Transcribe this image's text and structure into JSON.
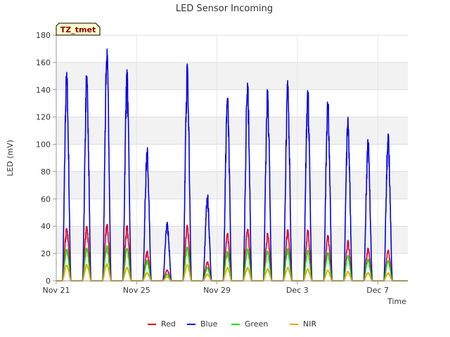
{
  "chart_data": {
    "type": "line",
    "title": "LED Sensor Incoming",
    "xlabel": "Time",
    "ylabel": "LED (mV)",
    "tag": "TZ_tmet",
    "ylim": [
      0,
      180
    ],
    "xlim": [
      0,
      17.5
    ],
    "yticks": [
      0,
      20,
      40,
      60,
      80,
      100,
      120,
      140,
      160,
      180
    ],
    "xticks": [
      {
        "value": 0,
        "label": "Nov 21"
      },
      {
        "value": 4,
        "label": "Nov 25"
      },
      {
        "value": 8,
        "label": "Nov 29"
      },
      {
        "value": 12,
        "label": "Dec 3"
      },
      {
        "value": 16,
        "label": "Dec 7"
      }
    ],
    "day_offset": 0.5,
    "daily_peaks": {
      "Blue": [
        158,
        151,
        172,
        155,
        98,
        43,
        160,
        63,
        139,
        148,
        141,
        148,
        142,
        135,
        121,
        104,
        110
      ],
      "Red": [
        40,
        40,
        43,
        41,
        22,
        8,
        41,
        14,
        36,
        39,
        35,
        38,
        38,
        34,
        30,
        24,
        23
      ],
      "Green": [
        24,
        24,
        26,
        24,
        15,
        5,
        25,
        10,
        22,
        24,
        22,
        24,
        23,
        21,
        19,
        16,
        15
      ],
      "NIR": [
        12,
        12,
        13,
        10,
        6,
        3,
        12,
        5,
        10,
        10,
        9,
        10,
        9,
        8,
        7,
        6,
        6
      ]
    },
    "series": [
      {
        "name": "Red",
        "color": "#e8000b"
      },
      {
        "name": "Blue",
        "color": "#0000e8"
      },
      {
        "name": "Green",
        "color": "#00e400"
      },
      {
        "name": "NIR",
        "color": "#f5a000"
      }
    ],
    "legend_position": "bottom-center",
    "grid": true
  }
}
